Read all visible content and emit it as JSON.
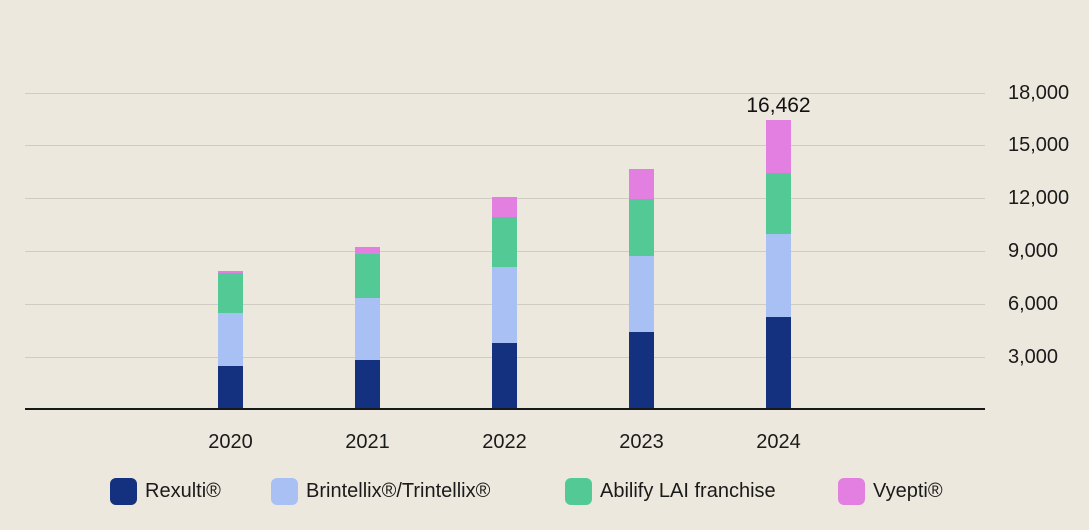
{
  "colors": {
    "background": "#ece8dd",
    "gridline": "#cfccc2",
    "axis_line": "#191919",
    "text": "#1a1a1a",
    "rexulti": "#14317f",
    "brintellix": "#a9c0f4",
    "abilify": "#53c995",
    "vyepti": "#e27fe0"
  },
  "chart_data": {
    "type": "bar",
    "stacked": true,
    "title": "",
    "xlabel": "",
    "ylabel": "",
    "categories": [
      "2020",
      "2021",
      "2022",
      "2023",
      "2024"
    ],
    "series": [
      {
        "name": "Rexulti®",
        "color": "#14317f",
        "values": [
          2502,
          2810,
          3821,
          4426,
          5268
        ]
      },
      {
        "name": "Brintellix®/Trintellix®",
        "color": "#a9c0f4",
        "values": [
          3022,
          3561,
          4282,
          4328,
          4702
        ]
      },
      {
        "name": "Abilify LAI franchise",
        "color": "#53c995",
        "values": [
          2276,
          2470,
          2865,
          3205,
          3498
        ]
      },
      {
        "name": "Vyepti®",
        "color": "#e27fe0",
        "values": [
          31,
          373,
          1111,
          1683,
          2994
        ]
      }
    ],
    "annotations": [
      {
        "category": "2024",
        "label": "16,462",
        "value": 16462
      }
    ],
    "y_axis": {
      "position": "right",
      "grid": true,
      "ylim": [
        0,
        19000
      ],
      "tick_values": [
        3000,
        6000,
        9000,
        12000,
        15000,
        18000
      ],
      "ticks": [
        "3,000",
        "6,000",
        "9,000",
        "12,000",
        "15,000",
        "18,000"
      ]
    },
    "legend_position": "bottom"
  }
}
